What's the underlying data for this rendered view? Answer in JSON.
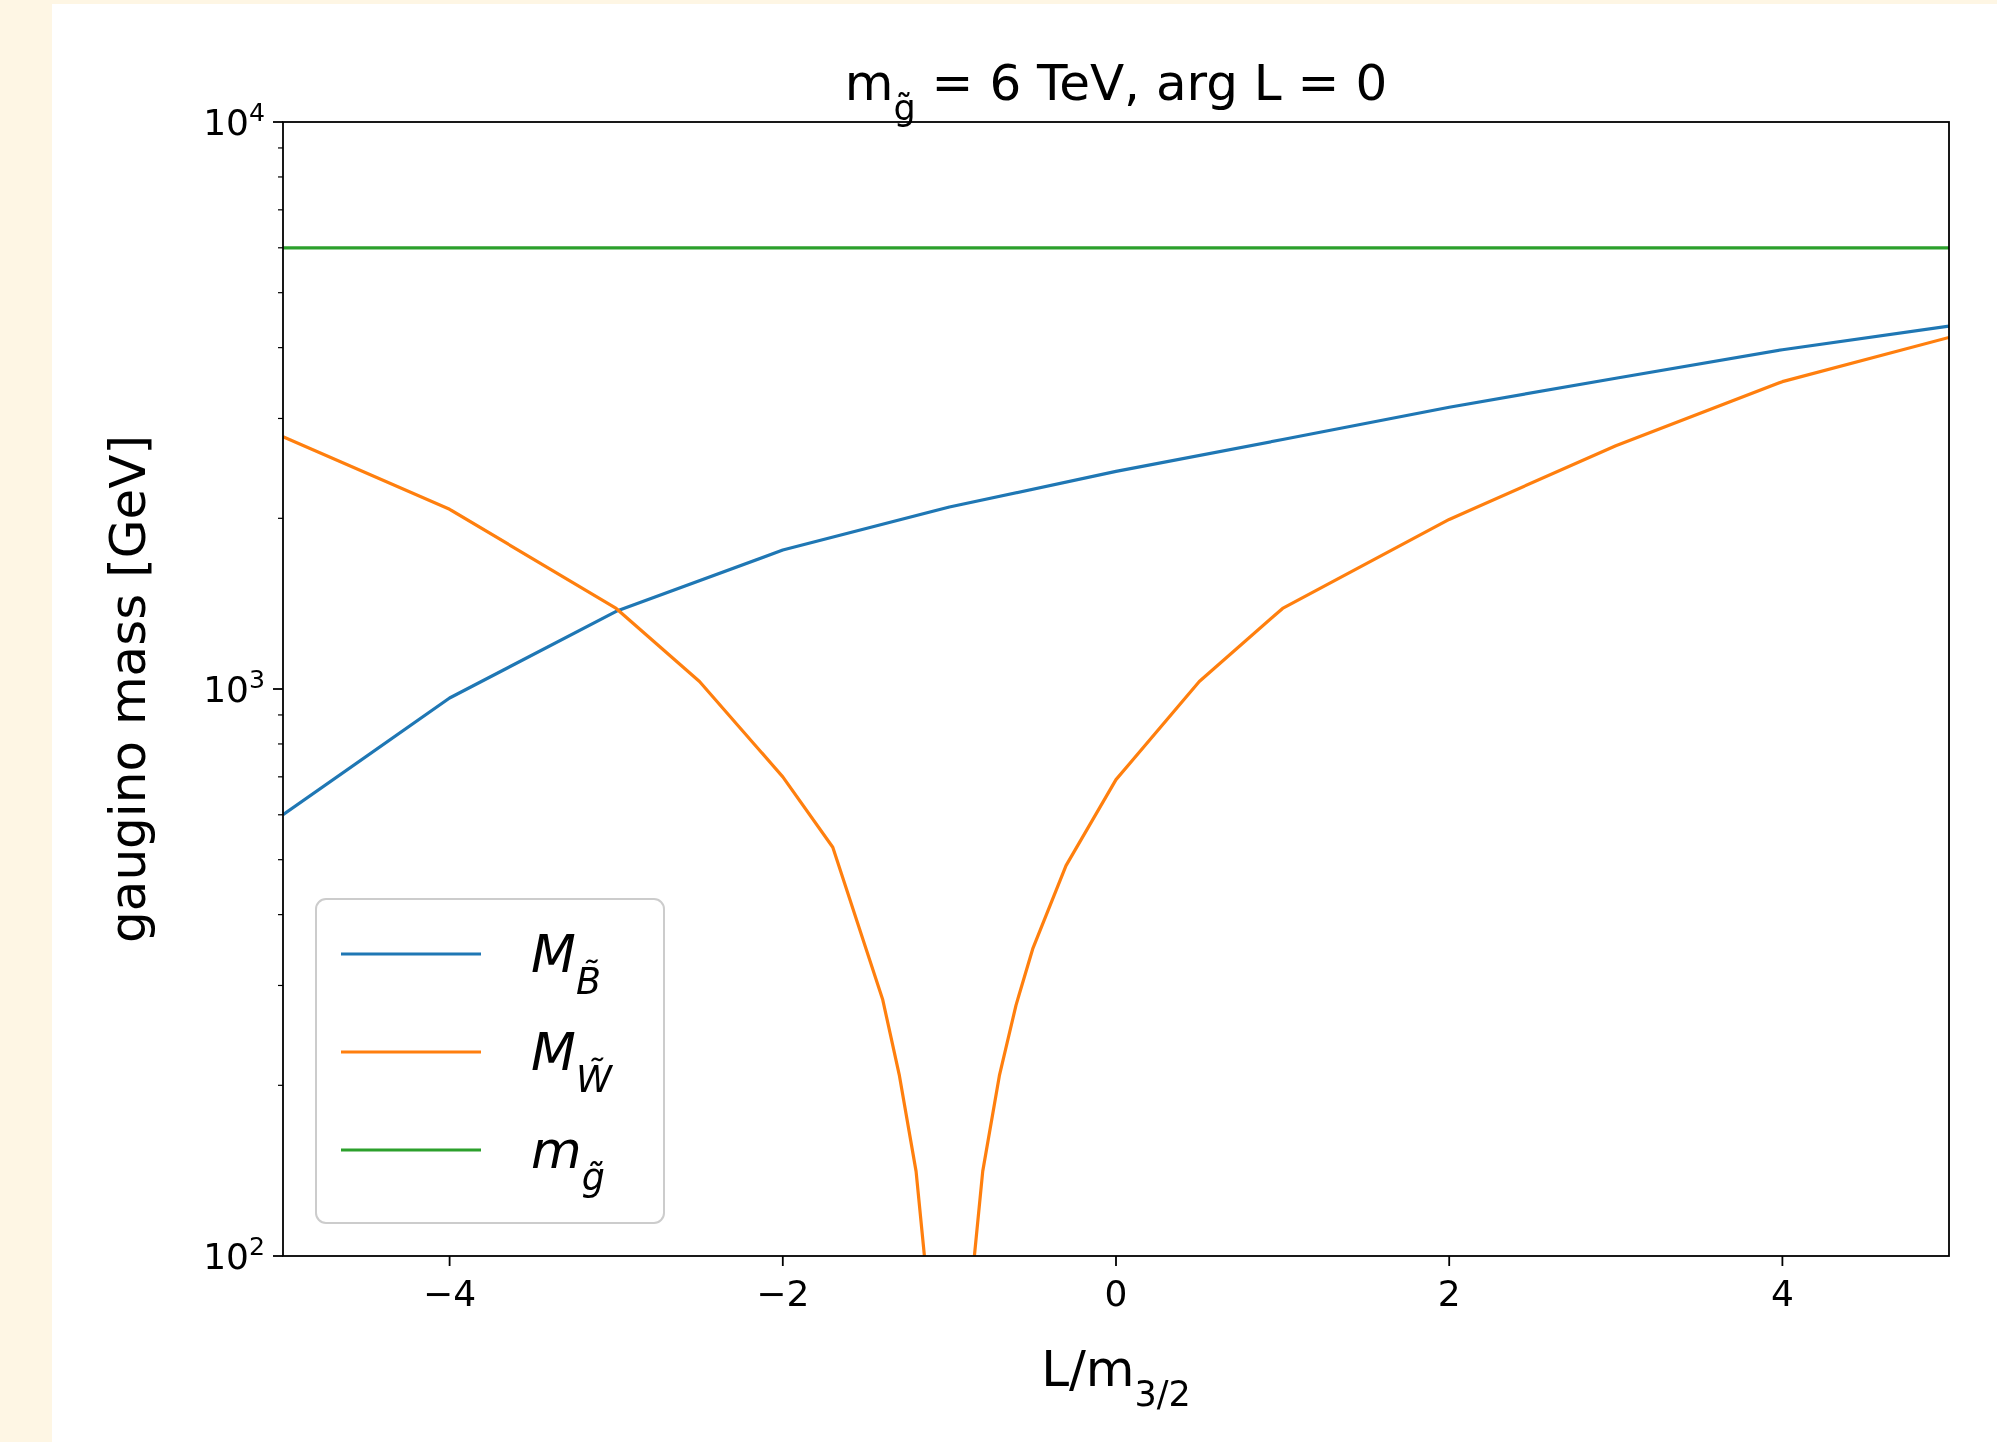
{
  "chart_data": {
    "type": "line",
    "title": "m$_{g̃}$ = 6 TeV, arg L = 0",
    "xlabel": "L/m$_{3/2}$",
    "ylabel": "gaugino mass [GeV]",
    "log": "y",
    "grid": false,
    "legend": "bottom left",
    "line_style": "solid",
    "marker": "none",
    "xlim": [
      -5,
      5
    ],
    "xticks": [
      {
        "value": -4,
        "label": "−4"
      },
      {
        "value": -2,
        "label": "−2"
      },
      0,
      2,
      4
    ],
    "ylim": [
      100,
      10000
    ],
    "yticks": [
      {
        "value": 100,
        "label": "10$^{2}$"
      },
      {
        "value": 200,
        "label": null
      },
      {
        "value": 300,
        "label": null
      },
      {
        "value": 400,
        "label": null
      },
      {
        "value": 500,
        "label": null
      },
      {
        "value": 600,
        "label": null
      },
      {
        "value": 700,
        "label": null
      },
      {
        "value": 800,
        "label": null
      },
      {
        "value": 900,
        "label": null
      },
      {
        "value": 1000,
        "label": "10$^{3}$"
      },
      {
        "value": 2000,
        "label": null
      },
      {
        "value": 3000,
        "label": null
      },
      {
        "value": 4000,
        "label": null
      },
      {
        "value": 5000,
        "label": null
      },
      {
        "value": 6000,
        "label": null
      },
      {
        "value": 7000,
        "label": null
      },
      {
        "value": 8000,
        "label": null
      },
      {
        "value": 9000,
        "label": null
      },
      {
        "value": 10000,
        "label": "10$^{4}$"
      }
    ],
    "series": [
      {
        "name": "M$_{B̃}$",
        "color": "#1f77b4",
        "x": [
          -5,
          -4,
          -3,
          -2,
          -1,
          0,
          1,
          2,
          3,
          4,
          5
        ],
        "values": [
          600,
          964,
          1371,
          1758,
          2094,
          2420,
          2754,
          3140,
          3533,
          3966,
          4365
        ]
      },
      {
        "name": "M$_{W̃}$",
        "color": "#ff7f0e",
        "x": [
          -5,
          -4,
          -3,
          -2.5,
          -2,
          -1.7,
          -1.5,
          -1.4,
          -1.3,
          -1.2,
          -1.15,
          -1,
          -0.85,
          -0.8,
          -0.7,
          -0.6,
          -0.5,
          -0.3,
          0,
          0.5,
          1,
          2,
          3,
          4,
          5
        ],
        "values": [
          2786,
          2075,
          1387,
          1031,
          700,
          526,
          348,
          283,
          208,
          141,
          100,
          null,
          100,
          141,
          208,
          277,
          348,
          488,
          692,
          1031,
          1387,
          1991,
          2685,
          3484,
          4169
        ]
      },
      {
        "name": "m$_{g̃}$",
        "color": "#2ca02c",
        "x": [
          -5,
          5
        ],
        "values": [
          6000,
          6000
        ]
      }
    ]
  }
}
